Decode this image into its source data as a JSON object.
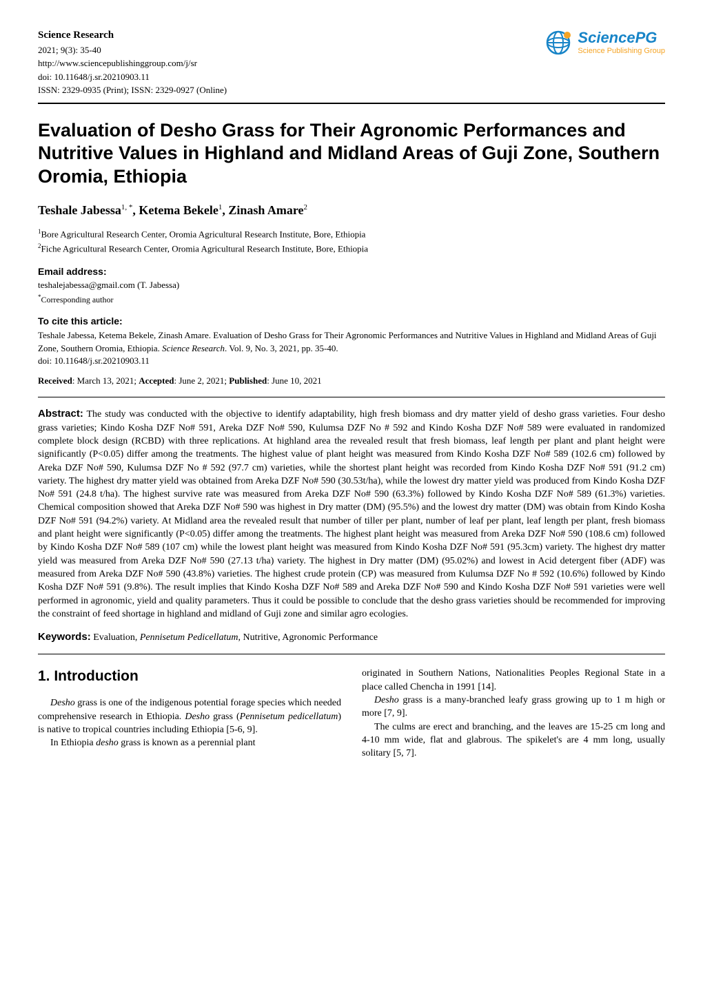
{
  "brand": {
    "logo_name": "SciencePG",
    "logo_sub": "Science Publishing Group",
    "logo_color_top": "#1784c7",
    "logo_color_dot": "#f5a425",
    "logo_text_color": "#1784c7",
    "logo_sub_color": "#f5a425"
  },
  "journal": {
    "name": "Science Research",
    "issue_line": "2021; 9(3): 35-40",
    "url": "http://www.sciencepublishinggroup.com/j/sr",
    "doi": "doi: 10.11648/j.sr.20210903.11",
    "issn": "ISSN: 2329-0935 (Print); ISSN: 2329-0927 (Online)"
  },
  "title": "Evaluation of Desho Grass for Their Agronomic Performances and Nutritive Values in Highland and Midland Areas of Guji Zone, Southern Oromia, Ethiopia",
  "authors_html": "Teshale Jabessa<sup>1, *</sup>, Ketema Bekele<sup>1</sup>, Zinash Amare<sup>2</sup>",
  "affiliations": [
    {
      "num": "1",
      "text": "Bore Agricultural Research Center, Oromia Agricultural Research Institute, Bore, Ethiopia"
    },
    {
      "num": "2",
      "text": "Fiche Agricultural Research Center, Oromia Agricultural Research Institute, Bore, Ethiopia"
    }
  ],
  "email": {
    "label": "Email address:",
    "value": "teshalejabessa@gmail.com (T. Jabessa)"
  },
  "corresponding": "Corresponding author",
  "cite": {
    "label": "To cite this article:",
    "text_plain": "Teshale Jabessa, Ketema Bekele, Zinash Amare. Evaluation of Desho Grass for Their Agronomic Performances and Nutritive Values in Highland and Midland Areas of Guji Zone, Southern Oromia, Ethiopia. ",
    "journal_ital": "Science Research",
    "tail": ". Vol. 9, No. 3, 2021, pp. 35-40.",
    "doi_line": "doi: 10.11648/j.sr.20210903.11"
  },
  "dates": {
    "received_label": "Received",
    "received": ": March 13, 2021; ",
    "accepted_label": "Accepted",
    "accepted": ": June 2, 2021; ",
    "published_label": "Published",
    "published": ": June 10, 2021"
  },
  "abstract": {
    "label": "Abstract:",
    "text": " The study was conducted with the objective to identify adaptability, high fresh biomass and dry matter yield of desho grass varieties. Four desho grass varieties; Kindo Kosha DZF No# 591, Areka DZF No# 590, Kulumsa DZF No # 592 and Kindo Kosha DZF No# 589 were evaluated in randomized complete block design (RCBD) with three replications. At highland area the revealed result that fresh biomass, leaf length per plant and plant height were significantly (P<0.05) differ among the treatments. The highest value of plant height was measured from Kindo Kosha DZF No# 589 (102.6 cm) followed by Areka DZF No# 590, Kulumsa DZF No # 592 (97.7 cm) varieties, while the shortest plant height was recorded from Kindo Kosha DZF No# 591 (91.2 cm) variety. The highest dry matter yield was obtained from Areka DZF No# 590 (30.53t/ha), while the lowest dry matter yield was produced from Kindo Kosha DZF No# 591 (24.8 t/ha). The highest survive rate was measured from Areka DZF No# 590 (63.3%) followed by Kindo Kosha DZF No# 589 (61.3%) varieties. Chemical composition showed that Areka DZF No# 590 was highest in Dry matter (DM) (95.5%) and the lowest dry matter (DM) was obtain from Kindo Kosha DZF No# 591 (94.2%) variety. At Midland area the revealed result that number of tiller per plant, number of leaf per plant, leaf length per plant, fresh biomass and plant height were significantly (P<0.05) differ among the treatments. The highest plant height was measured from Areka DZF No# 590 (108.6 cm) followed by Kindo Kosha DZF No# 589 (107 cm) while the lowest plant height was measured from Kindo Kosha DZF No# 591 (95.3cm) variety. The highest dry matter yield was measured from Areka DZF No# 590 (27.13 t/ha) variety. The highest in Dry matter (DM) (95.02%) and lowest in Acid detergent fiber (ADF) was measured from Areka DZF No# 590 (43.8%) varieties. The highest crude protein (CP) was measured from Kulumsa DZF No # 592 (10.6%) followed by Kindo Kosha DZF No# 591 (9.8%). The result implies that Kindo Kosha DZF No# 589 and Areka DZF No# 590 and Kindo Kosha DZF No# 591 varieties were well performed in agronomic, yield and quality parameters. Thus it could be possible to conclude that the desho grass varieties should be recommended for improving the constraint of feed shortage in highland and midland of Guji zone and similar agro ecologies."
  },
  "keywords": {
    "label": "Keywords:",
    "pre": " Evaluation, ",
    "ital": "Pennisetum Pedicellatum",
    "post": ", Nutritive, Agronomic Performance"
  },
  "intro": {
    "heading": "1. Introduction",
    "left_paras": [
      {
        "pre": "",
        "ital": "Desho",
        "post": " grass is one of the indigenous potential forage species which needed comprehensive research in Ethiopia. ",
        "ital2": "Desho",
        "post2": " grass (",
        "ital3": "Pennisetum pedicellatum",
        "post3": ") is native to tropical countries including Ethiopia [5-6, 9]."
      },
      {
        "pre": "In Ethiopia ",
        "ital": "desho",
        "post": " grass is known as a perennial plant"
      }
    ],
    "right_paras": [
      {
        "text": "originated in Southern Nations, Nationalities Peoples Regional State in a place called Chencha in 1991 [14]."
      },
      {
        "pre": "",
        "ital": "Desho",
        "post": " grass is a many-branched leafy grass growing up to 1 m high or more [7, 9]."
      },
      {
        "text": "The culms are erect and branching, and the leaves are 15-25 cm long and 4-10 mm wide, flat and glabrous. The spikelet's are 4 mm long, usually solitary [5, 7]."
      }
    ]
  },
  "style": {
    "title_fontsize": 27,
    "body_fontsize": 14,
    "heading_fontsize": 21,
    "rule_color": "#000000",
    "background": "#ffffff"
  }
}
